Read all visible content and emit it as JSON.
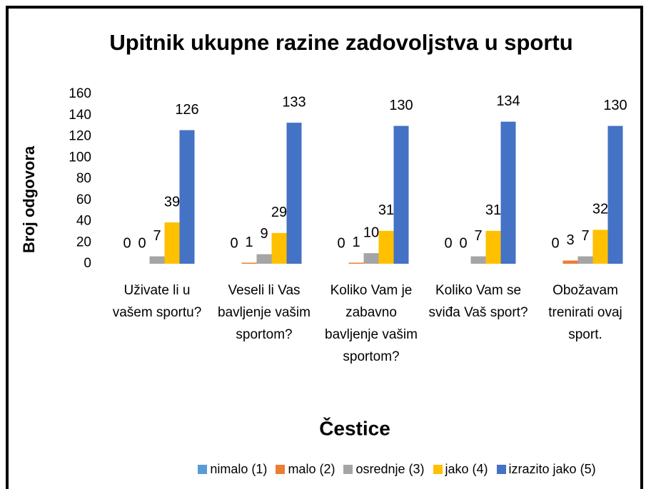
{
  "chart_data": {
    "type": "bar",
    "title": "Upitnik ukupne razine zadovoljstva u sportu",
    "y_label": "Broj odgovora",
    "x_label": "Čestice",
    "categories": [
      "Uživate li u vašem sportu?",
      "Veseli li Vas bavljenje vašim sportom?",
      "Koliko Vam je zabavno bavljenje vašim sportom?",
      "Koliko Vam se sviđa Vaš sport?",
      "Obožavam trenirati ovaj sport."
    ],
    "series": [
      {
        "name": "nimalo (1)",
        "color": "#5b9bd5",
        "values": [
          0,
          0,
          0,
          0,
          0
        ]
      },
      {
        "name": "malo (2)",
        "color": "#ed7d31",
        "values": [
          0,
          1,
          1,
          0,
          3
        ]
      },
      {
        "name": "osrednje (3)",
        "color": "#a5a5a5",
        "values": [
          7,
          9,
          10,
          7,
          7
        ]
      },
      {
        "name": "jako (4)",
        "color": "#ffc000",
        "values": [
          39,
          29,
          31,
          31,
          32
        ]
      },
      {
        "name": "izrazito jako (5)",
        "color": "#4472c4",
        "values": [
          126,
          133,
          130,
          134,
          130
        ]
      }
    ],
    "ylim": [
      0,
      160
    ],
    "yticks": [
      0,
      20,
      40,
      60,
      80,
      100,
      120,
      140,
      160
    ],
    "grid": false,
    "legend": "bottom"
  }
}
